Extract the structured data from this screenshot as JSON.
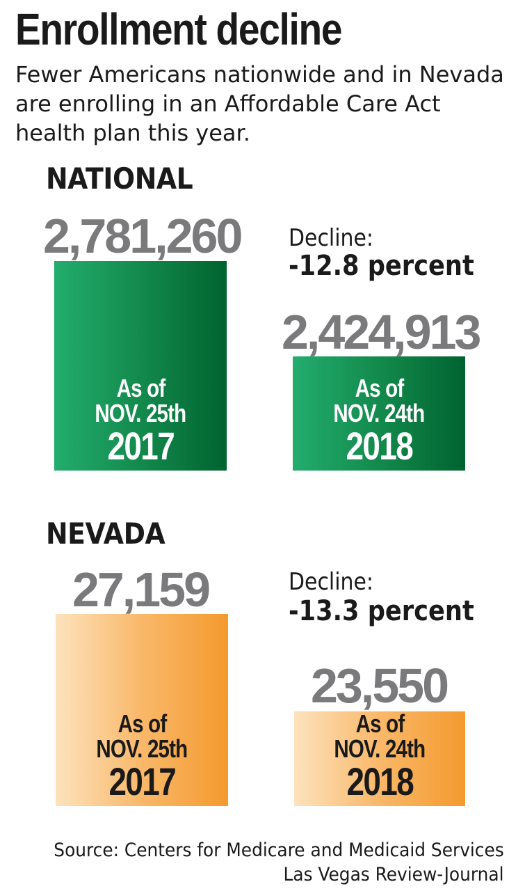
{
  "chart_data": {
    "type": "bar",
    "title": "Enrollment decline",
    "subtitle": "Fewer Americans nationwide and in Nevada are enrolling in an Affordable Care Act health plan this year.",
    "panels": [
      {
        "label": "NATIONAL",
        "color": "#138a4c",
        "decline_label": "Decline:",
        "decline_value": "-12.8 percent",
        "bars": [
          {
            "value": 2781260,
            "value_label": "2,781,260",
            "asof": "As of",
            "date": "NOV. 25th",
            "year": "2017"
          },
          {
            "value": 2424913,
            "value_label": "2,424,913",
            "asof": "As of",
            "date": "NOV. 24th",
            "year": "2018"
          }
        ]
      },
      {
        "label": "NEVADA",
        "color": "#f49a2e",
        "decline_label": "Decline:",
        "decline_value": "-13.3 percent",
        "bars": [
          {
            "value": 27159,
            "value_label": "27,159",
            "asof": "As of",
            "date": "NOV. 25th",
            "year": "2017"
          },
          {
            "value": 23550,
            "value_label": "23,550",
            "asof": "As of",
            "date": "NOV. 24th",
            "year": "2018"
          }
        ]
      }
    ]
  },
  "footer": {
    "source": "Source: Centers for Medicare and Medicaid Services",
    "credit": "Las Vegas Review-Journal"
  }
}
